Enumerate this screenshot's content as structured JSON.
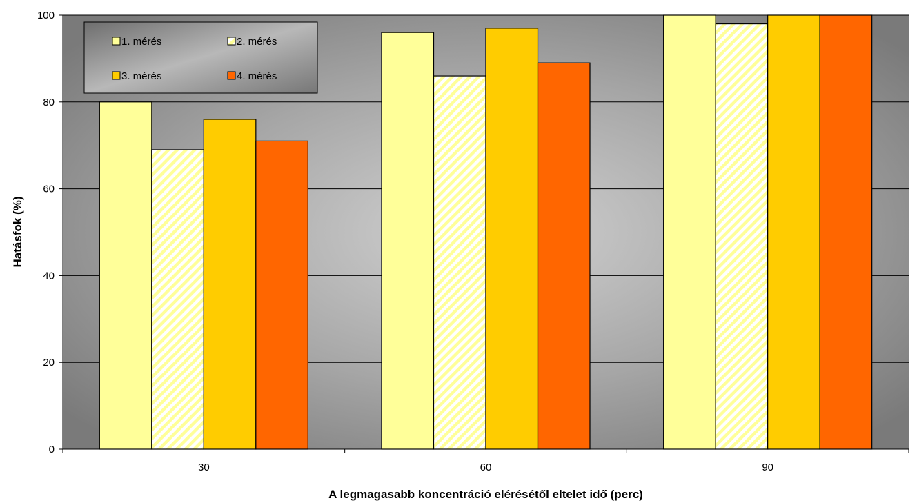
{
  "chart_data": {
    "type": "bar",
    "categories": [
      "30",
      "60",
      "90"
    ],
    "series": [
      {
        "name": "1. mérés",
        "values": [
          80,
          96,
          100
        ],
        "color": "#FFFF99",
        "pattern": "solid"
      },
      {
        "name": "2. mérés",
        "values": [
          69,
          86,
          98
        ],
        "color": "#FFFF99",
        "pattern": "diagonal-stripes"
      },
      {
        "name": "3. mérés",
        "values": [
          76,
          97,
          100
        ],
        "color": "#FFCC00",
        "pattern": "solid"
      },
      {
        "name": "4. mérés",
        "values": [
          71,
          89,
          100
        ],
        "color": "#FF6600",
        "pattern": "solid"
      }
    ],
    "title": "",
    "xlabel": "A legmagasabb koncentráció elérésétől eltelet idő (perc)",
    "ylabel": "Hatásfok (%)",
    "ylim": [
      0,
      100
    ],
    "yticks": [
      0,
      20,
      40,
      60,
      80,
      100
    ],
    "grid": true,
    "legend_position": "top-left",
    "plot_background": "radial-gradient gray"
  }
}
